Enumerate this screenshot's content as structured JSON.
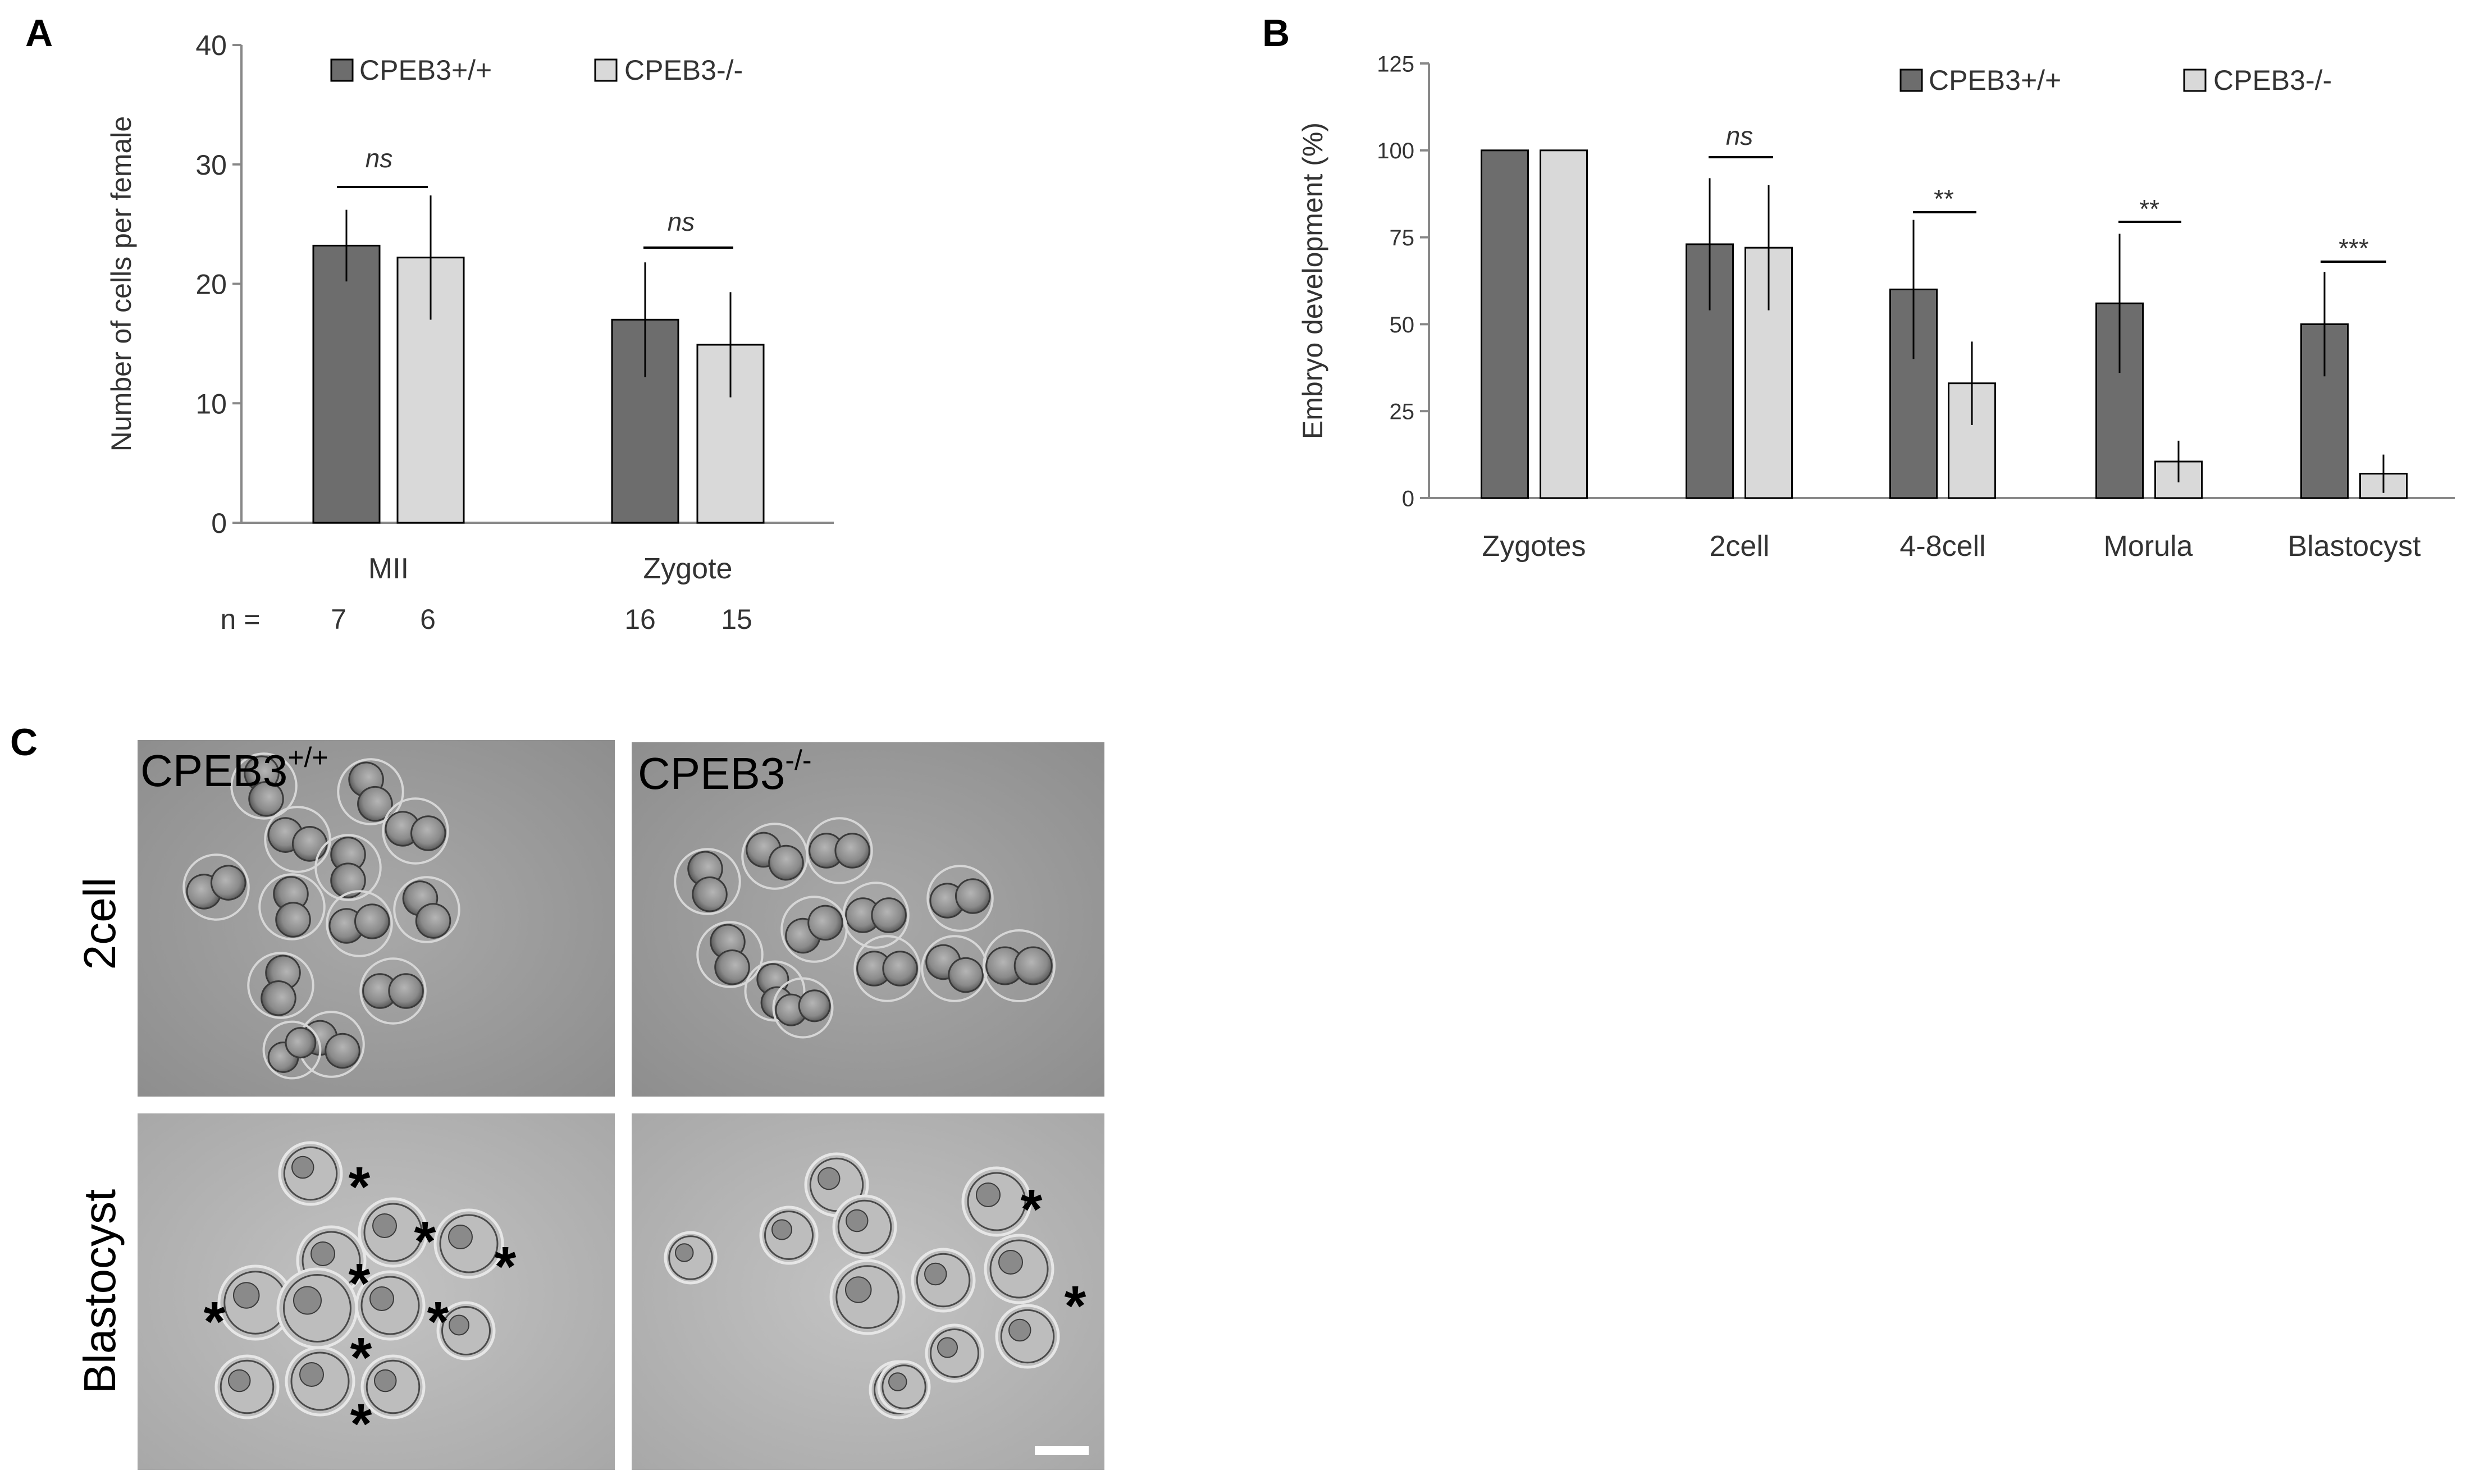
{
  "panel_A": {
    "letter": "A",
    "legend": [
      "CPEB3+/+",
      "CPEB3-/-"
    ],
    "n_label": "n =",
    "n_values": [
      "7",
      "6",
      "16",
      "15"
    ],
    "sig": [
      "ns",
      "ns"
    ]
  },
  "panel_B": {
    "letter": "B",
    "legend": [
      "CPEB3+/+",
      "CPEB3-/-"
    ],
    "sig": [
      "ns",
      "**",
      "**",
      "***"
    ]
  },
  "panel_C": {
    "letter": "C",
    "col_labels": [
      {
        "base": "CPEB3",
        "sup": "+/+"
      },
      {
        "base": "CPEB3",
        "sup": "-/-"
      }
    ],
    "row_labels": [
      "2cell",
      "Blastocyst"
    ],
    "asterisk": "*"
  },
  "colors": {
    "wt": "#6d6d6d",
    "ko": "#d9d9d9",
    "axis": "#888888",
    "bar_edge": "#000000",
    "micro_bg": "#9c9c9c",
    "micro_bg_light": "#b4b4b4"
  },
  "chart_data": [
    {
      "type": "bar",
      "panel": "A",
      "categories": [
        "MII",
        "Zygote"
      ],
      "ylabel": "Number of cells per female",
      "ylim": [
        0,
        40
      ],
      "yticks": [
        0,
        10,
        20,
        30,
        40
      ],
      "series": [
        {
          "name": "CPEB3+/+",
          "values": [
            23.2,
            17.0
          ],
          "errors": [
            3.0,
            4.8
          ]
        },
        {
          "name": "CPEB3-/-",
          "values": [
            22.2,
            14.9
          ],
          "errors": [
            5.2,
            4.4
          ]
        }
      ],
      "legend": "top"
    },
    {
      "type": "bar",
      "panel": "B",
      "categories": [
        "Zygotes",
        "2cell",
        "4-8cell",
        "Morula",
        "Blastocyst"
      ],
      "ylabel": "Embryo development (%)",
      "ylim": [
        0,
        125
      ],
      "yticks": [
        0,
        25,
        50,
        75,
        100,
        125
      ],
      "series": [
        {
          "name": "CPEB3+/+",
          "values": [
            100,
            73,
            60,
            56,
            50
          ],
          "errors": [
            0,
            19,
            20,
            20,
            15
          ]
        },
        {
          "name": "CPEB3-/-",
          "values": [
            100,
            72,
            33,
            10.5,
            7
          ],
          "errors": [
            0,
            18,
            12,
            6,
            5.5
          ]
        }
      ],
      "legend": "top-right"
    }
  ]
}
